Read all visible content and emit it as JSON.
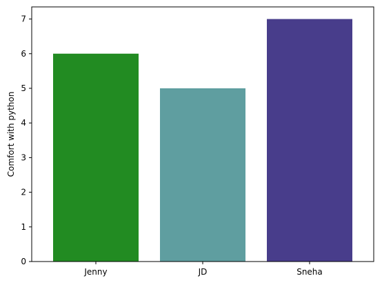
{
  "chart_data": {
    "type": "bar",
    "title": "",
    "xlabel": "",
    "ylabel": "Comfort with python",
    "categories": [
      "Jenny",
      "JD",
      "Sneha"
    ],
    "values": [
      6,
      5,
      7
    ],
    "colors": [
      "#228B22",
      "#5F9EA0",
      "#483D8B"
    ],
    "ylim": [
      0,
      7.35
    ],
    "yticks": [
      0,
      1,
      2,
      3,
      4,
      5,
      6,
      7
    ],
    "grid": false
  }
}
